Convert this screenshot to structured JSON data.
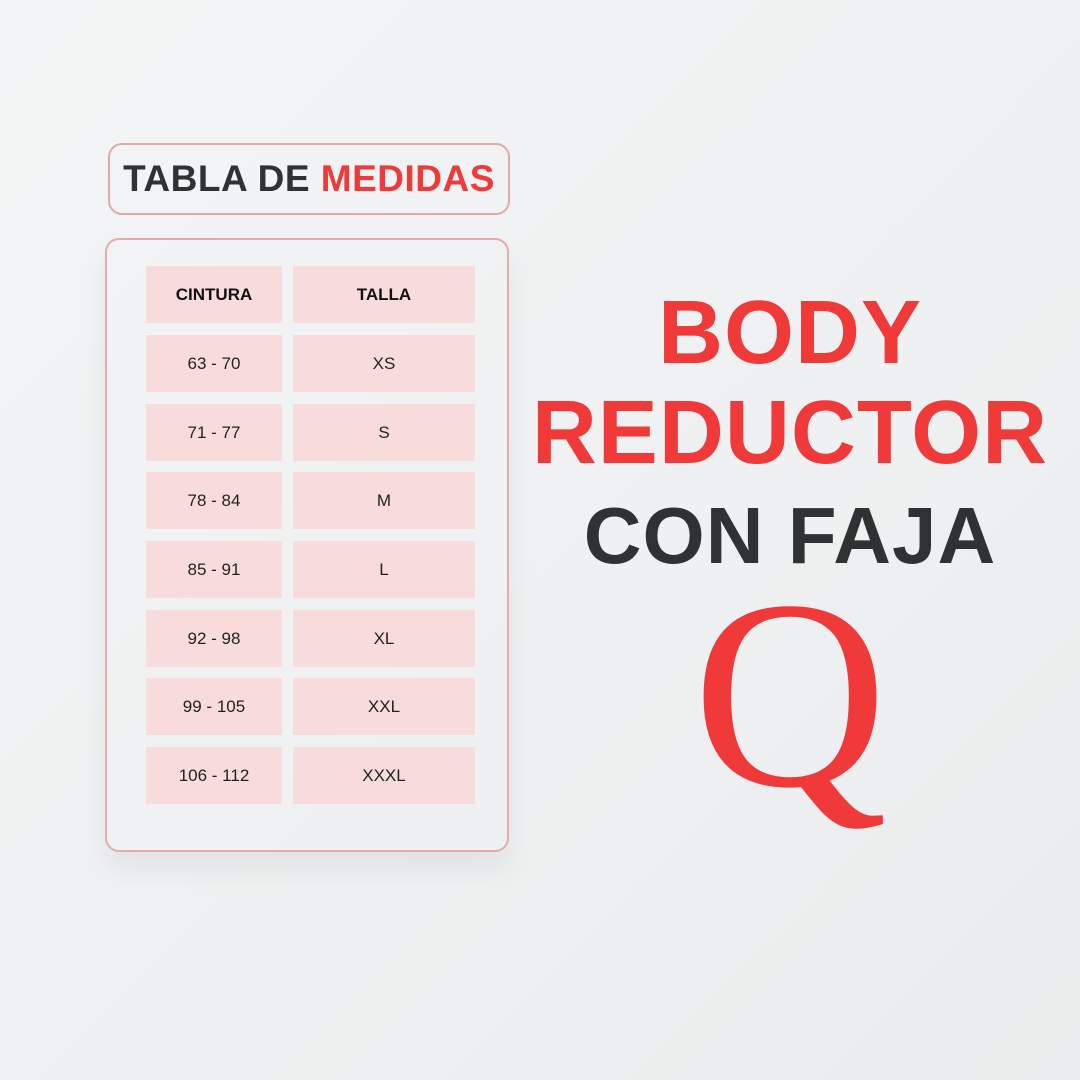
{
  "size_chart": {
    "title_part1": "TABLA DE",
    "title_part2": "MEDIDAS",
    "headers": [
      "CINTURA",
      "TALLA"
    ],
    "rows": [
      [
        "63 - 70",
        "XS"
      ],
      [
        "71 - 77",
        "S"
      ],
      [
        "78 - 84",
        "M"
      ],
      [
        "85 - 91",
        "L"
      ],
      [
        "92 - 98",
        "XL"
      ],
      [
        "99 - 105",
        "XXL"
      ],
      [
        "106 - 112",
        "XXXL"
      ]
    ]
  },
  "product": {
    "line1": "BODY",
    "line2": "REDUCTOR",
    "line3": "CON FAJA",
    "logo_letter": "Q"
  },
  "colors": {
    "accent": "#f03a3a",
    "dark": "#2f3133",
    "cell": "#f8dcdc",
    "border": "#e3a9a9"
  }
}
